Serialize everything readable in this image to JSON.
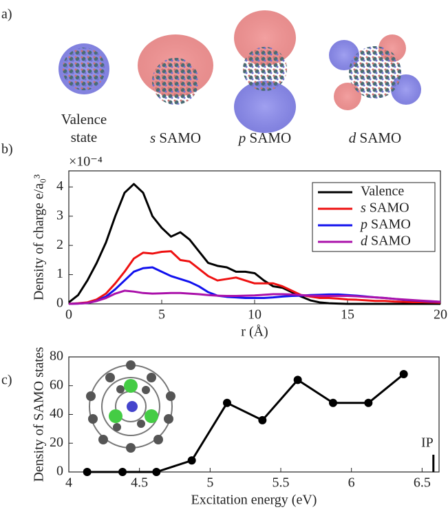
{
  "panels": [
    "a)",
    "b)",
    "c)"
  ],
  "orbital_labels": [
    "Valence state",
    "s SAMO",
    "p SAMO",
    "d SAMO"
  ],
  "chart_data": [
    {
      "type": "line",
      "y_label": "Density of charge e/a₀³",
      "y_multiplier": "×10⁻⁴",
      "x_label": "r (Å)",
      "x": [
        0,
        0.5,
        1,
        1.5,
        2,
        2.5,
        3,
        3.5,
        4,
        4.5,
        5,
        5.5,
        6,
        6.5,
        7,
        7.5,
        8,
        8.5,
        9,
        9.5,
        10,
        10.5,
        11,
        11.5,
        12,
        12.5,
        13,
        13.5,
        14,
        14.5,
        15,
        15.5,
        16,
        16.5,
        17,
        17.5,
        18,
        18.5,
        19,
        19.5,
        20
      ],
      "series": [
        {
          "name": "Valence",
          "color": "#000000",
          "values": [
            0.05,
            0.3,
            0.8,
            1.4,
            2.1,
            3.0,
            3.8,
            4.1,
            3.8,
            3.0,
            2.6,
            2.3,
            2.45,
            2.2,
            1.8,
            1.4,
            1.3,
            1.25,
            1.1,
            1.1,
            1.05,
            0.8,
            0.6,
            0.55,
            0.4,
            0.25,
            0.12,
            0.05,
            0.02,
            0.01,
            0,
            0,
            0,
            0,
            0,
            0,
            0,
            0,
            0,
            0,
            0
          ]
        },
        {
          "name": "s SAMO",
          "color": "#ee1111",
          "values": [
            0,
            0.02,
            0.05,
            0.15,
            0.35,
            0.7,
            1.1,
            1.55,
            1.75,
            1.72,
            1.78,
            1.8,
            1.5,
            1.45,
            1.2,
            0.95,
            0.8,
            0.85,
            0.9,
            0.8,
            0.7,
            0.7,
            0.7,
            0.6,
            0.45,
            0.3,
            0.25,
            0.2,
            0.2,
            0.18,
            0.15,
            0.14,
            0.12,
            0.1,
            0.1,
            0.08,
            0.07,
            0.06,
            0.06,
            0.05,
            0.04
          ]
        },
        {
          "name": "p SAMO",
          "color": "#1111ee",
          "values": [
            0,
            0.01,
            0.03,
            0.1,
            0.25,
            0.5,
            0.8,
            1.1,
            1.22,
            1.25,
            1.1,
            0.95,
            0.85,
            0.75,
            0.6,
            0.4,
            0.28,
            0.24,
            0.22,
            0.2,
            0.2,
            0.2,
            0.22,
            0.25,
            0.27,
            0.28,
            0.3,
            0.31,
            0.32,
            0.32,
            0.3,
            0.28,
            0.25,
            0.22,
            0.2,
            0.17,
            0.14,
            0.12,
            0.1,
            0.08,
            0.07
          ]
        },
        {
          "name": "d SAMO",
          "color": "#aa11aa",
          "values": [
            0,
            0.01,
            0.03,
            0.1,
            0.2,
            0.35,
            0.45,
            0.42,
            0.37,
            0.35,
            0.36,
            0.37,
            0.37,
            0.35,
            0.33,
            0.3,
            0.28,
            0.27,
            0.27,
            0.28,
            0.29,
            0.31,
            0.33,
            0.33,
            0.32,
            0.3,
            0.28,
            0.27,
            0.27,
            0.27,
            0.27,
            0.26,
            0.24,
            0.22,
            0.2,
            0.17,
            0.15,
            0.13,
            0.11,
            0.09,
            0.07
          ]
        }
      ],
      "xlim": [
        0,
        20
      ],
      "xticks": [
        0,
        5,
        10,
        15,
        20
      ],
      "ylim": [
        0,
        4.55
      ],
      "yticks": [
        0,
        1,
        2,
        3,
        4
      ],
      "legend": "top-right"
    },
    {
      "type": "line",
      "y_label": "Density of SAMO states",
      "x_label": "Excitation energy (eV)",
      "x": [
        4.13,
        4.38,
        4.62,
        4.87,
        5.12,
        5.37,
        5.62,
        5.87,
        6.12,
        6.37
      ],
      "series": [
        {
          "name": null,
          "color": "#000000",
          "values": [
            0,
            0,
            0,
            8,
            48,
            36,
            64,
            48,
            48,
            68
          ]
        }
      ],
      "xlim": [
        4,
        6.62
      ],
      "xticks": [
        4,
        4.5,
        5,
        5.5,
        6,
        6.5
      ],
      "ylim": [
        0,
        80
      ],
      "yticks": [
        0,
        20,
        40,
        60,
        80
      ],
      "markers": true,
      "annotation": {
        "label": "IP",
        "x": 6.58,
        "value": 12
      }
    }
  ]
}
